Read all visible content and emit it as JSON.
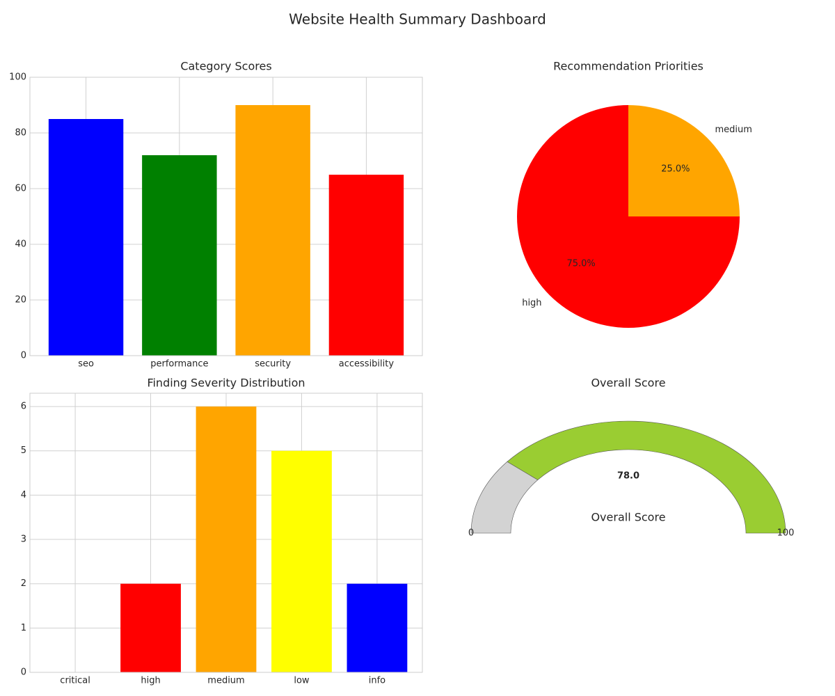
{
  "title": "Website Health Summary Dashboard",
  "chart_data": [
    {
      "type": "bar",
      "title": "Category Scores",
      "categories": [
        "seo",
        "performance",
        "security",
        "accessibility"
      ],
      "values": [
        85,
        72,
        90,
        65
      ],
      "colors": [
        "#0000ff",
        "#008000",
        "#ffa500",
        "#ff0000"
      ],
      "ylim": [
        0,
        100
      ],
      "yticks": [
        0,
        20,
        40,
        60,
        80,
        100
      ],
      "grid": true
    },
    {
      "type": "pie",
      "title": "Recommendation Priorities",
      "categories": [
        "high",
        "medium"
      ],
      "values": [
        75,
        25
      ],
      "value_labels": [
        "75.0%",
        "25.0%"
      ],
      "colors": [
        "#ff0000",
        "#ffa500"
      ],
      "start_angle": 90
    },
    {
      "type": "bar",
      "title": "Finding Severity Distribution",
      "categories": [
        "critical",
        "high",
        "medium",
        "low",
        "info"
      ],
      "values": [
        0,
        2,
        6,
        5,
        2
      ],
      "colors": [
        "#8b0000",
        "#ff0000",
        "#ffa500",
        "#ffff00",
        "#0000ff"
      ],
      "ylim": [
        0,
        6.3
      ],
      "yticks": [
        0,
        1,
        2,
        3,
        4,
        5,
        6
      ],
      "grid": true
    },
    {
      "type": "gauge",
      "title": "Overall Score",
      "label": "Overall Score",
      "value": 78,
      "value_label": "78.0",
      "range": [
        0,
        100
      ],
      "color": "#9acd32",
      "rest_color": "#d3d3d3"
    }
  ]
}
